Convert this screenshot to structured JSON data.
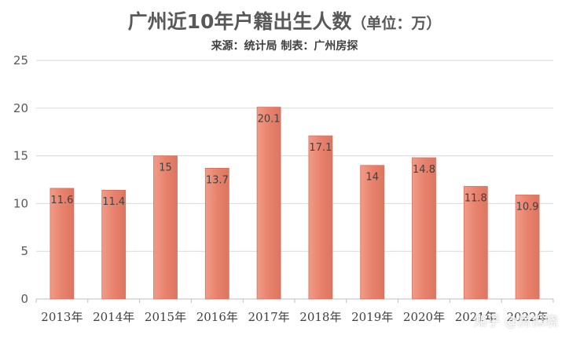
{
  "chart_data": {
    "type": "bar",
    "title": "广州近10年户籍出生人数",
    "title_unit": "（单位：万）",
    "subtitle": "来源：统计局      制表：广州房探",
    "categories": [
      "2013年",
      "2014年",
      "2015年",
      "2016年",
      "2017年",
      "2018年",
      "2019年",
      "2020年",
      "2021年",
      "2022年"
    ],
    "values": [
      11.6,
      11.4,
      15,
      13.7,
      20.1,
      17.1,
      14,
      14.8,
      11.8,
      10.9
    ],
    "data_labels": [
      "11.6",
      "11.4",
      "15",
      "13.7",
      "20.1",
      "17.1",
      "14",
      "14.8",
      "11.8",
      "10.9"
    ],
    "ylim": [
      0,
      25
    ],
    "yticks": [
      0,
      5,
      10,
      15,
      20,
      25
    ],
    "grid": true,
    "bar_color": "#E8826D",
    "xlabel": "",
    "ylabel": ""
  },
  "watermark": "知乎 @房探晓"
}
